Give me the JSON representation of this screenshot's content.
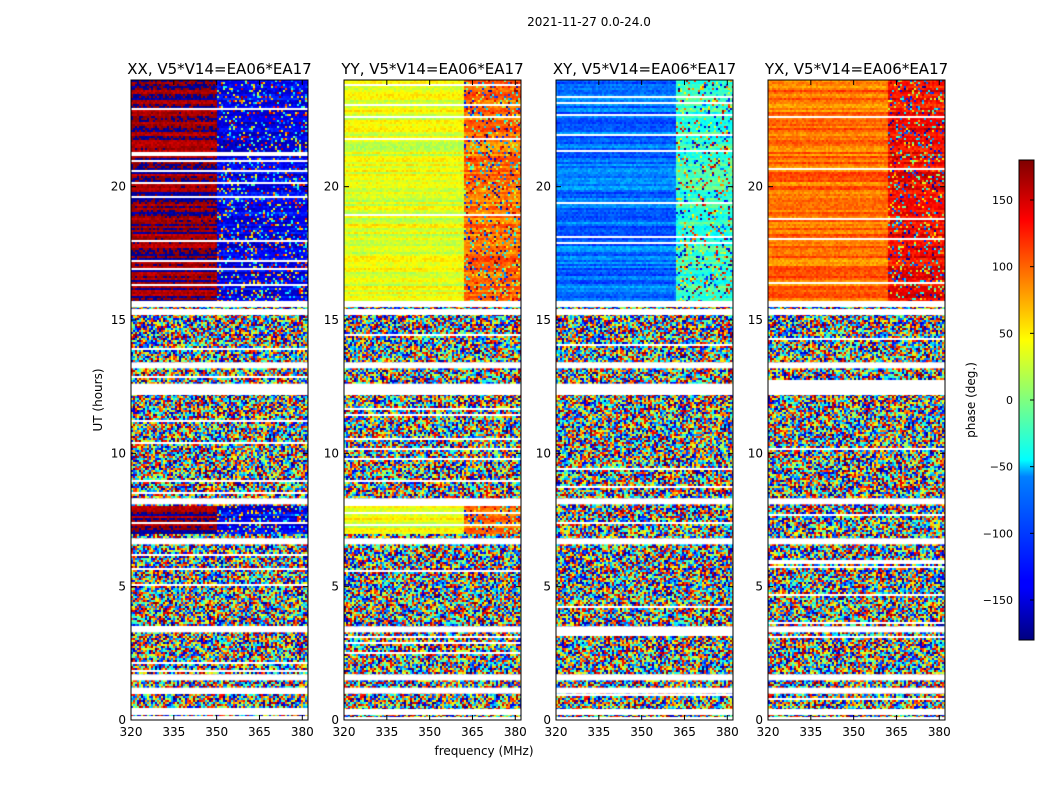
{
  "chart_data": {
    "type": "heatmap",
    "suptitle": "2021-11-27 0.0-24.0",
    "xlabel": "frequency (MHz)",
    "ylabel": "UT (hours)",
    "xlim": [
      320,
      382
    ],
    "ylim": [
      0,
      24
    ],
    "xticks": [
      320,
      335,
      350,
      365,
      380
    ],
    "yticks": [
      0,
      5,
      10,
      15,
      20
    ],
    "panels": [
      {
        "title": "XX, V5*V14=EA06*EA17",
        "pattern": "xx"
      },
      {
        "title": "YY, V5*V14=EA06*EA17",
        "pattern": "yy"
      },
      {
        "title": "XY, V5*V14=EA06*EA17",
        "pattern": "xy"
      },
      {
        "title": "YX, V5*V14=EA06*EA17",
        "pattern": "yx"
      }
    ],
    "colorbar": {
      "label": "phase (deg.)",
      "range": [
        -180,
        180
      ],
      "ticks": [
        -150,
        -100,
        -50,
        0,
        50,
        100,
        150
      ],
      "colormap": "jet"
    },
    "flagged_rows_ut": [
      0.0,
      0.3,
      1.1,
      1.6,
      3.4,
      6.7,
      8.2,
      12.3,
      12.5,
      13.3,
      15.3,
      15.6
    ],
    "smooth_region_ut": [
      15.7,
      24.0
    ],
    "smooth_region2_ut": [
      7.0,
      8.1
    ],
    "smooth_region_levels": {
      "xx": {
        "low_freq": 175,
        "high_freq": -140,
        "split_mhz": 350
      },
      "yy": {
        "low_freq": 35,
        "high_freq": 95,
        "split_mhz": 362
      },
      "xy": {
        "low_freq": -95,
        "high_freq": -25,
        "split_mhz": 362
      },
      "yx": {
        "low_freq": 95,
        "high_freq": 135,
        "split_mhz": 362
      }
    }
  }
}
